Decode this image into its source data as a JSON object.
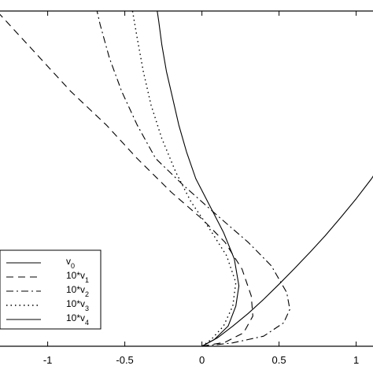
{
  "chart_data": {
    "type": "line",
    "xlim": [
      -1.35,
      1.15
    ],
    "ylim": [
      0,
      1
    ],
    "xticks": [
      -1,
      -0.5,
      0,
      0.5,
      1
    ],
    "xtick_labels": [
      "-1",
      "-0.5",
      "0",
      "0.5",
      "1"
    ],
    "grid": false,
    "legend_placement": "bottom-left",
    "series": [
      {
        "name": "v0",
        "label_main": "v",
        "label_sub": "0",
        "style": "solid",
        "points": [
          [
            0.0,
            0.0
          ],
          [
            0.1,
            0.025
          ],
          [
            0.2,
            0.06
          ],
          [
            0.3,
            0.098
          ],
          [
            0.4,
            0.14
          ],
          [
            0.5,
            0.185
          ],
          [
            0.6,
            0.232
          ],
          [
            0.7,
            0.28
          ],
          [
            0.8,
            0.33
          ],
          [
            0.9,
            0.384
          ],
          [
            1.0,
            0.44
          ],
          [
            1.1,
            0.5
          ],
          [
            1.17,
            0.55
          ]
        ]
      },
      {
        "name": "10*v1",
        "label_main": "10*v",
        "label_sub": "1",
        "style": "dashed",
        "points": [
          [
            0.0,
            0.0
          ],
          [
            0.15,
            0.012
          ],
          [
            0.27,
            0.04
          ],
          [
            0.33,
            0.09
          ],
          [
            0.32,
            0.15
          ],
          [
            0.26,
            0.23
          ],
          [
            0.15,
            0.31
          ],
          [
            0.0,
            0.38
          ],
          [
            -0.2,
            0.46
          ],
          [
            -0.42,
            0.56
          ],
          [
            -0.62,
            0.66
          ],
          [
            -0.85,
            0.76
          ],
          [
            -1.05,
            0.86
          ],
          [
            -1.25,
            0.96
          ],
          [
            -1.33,
            1.0
          ]
        ]
      },
      {
        "name": "10*v2",
        "label_main": "10*v",
        "label_sub": "2",
        "style": "dashdot",
        "points": [
          [
            0.0,
            0.0
          ],
          [
            0.2,
            0.01
          ],
          [
            0.4,
            0.03
          ],
          [
            0.53,
            0.07
          ],
          [
            0.57,
            0.11
          ],
          [
            0.55,
            0.16
          ],
          [
            0.45,
            0.24
          ],
          [
            0.3,
            0.31
          ],
          [
            0.1,
            0.39
          ],
          [
            -0.12,
            0.48
          ],
          [
            -0.3,
            0.56
          ],
          [
            -0.42,
            0.66
          ],
          [
            -0.52,
            0.76
          ],
          [
            -0.6,
            0.86
          ],
          [
            -0.66,
            0.96
          ],
          [
            -0.68,
            1.0
          ]
        ]
      },
      {
        "name": "10*v3",
        "label_main": "10*v",
        "label_sub": "3",
        "style": "dotted",
        "points": [
          [
            0.0,
            0.0
          ],
          [
            0.06,
            0.02
          ],
          [
            0.14,
            0.06
          ],
          [
            0.2,
            0.12
          ],
          [
            0.22,
            0.19
          ],
          [
            0.16,
            0.27
          ],
          [
            0.05,
            0.35
          ],
          [
            -0.07,
            0.43
          ],
          [
            -0.17,
            0.52
          ],
          [
            -0.26,
            0.62
          ],
          [
            -0.33,
            0.72
          ],
          [
            -0.38,
            0.82
          ],
          [
            -0.42,
            0.92
          ],
          [
            -0.45,
            1.0
          ]
        ]
      },
      {
        "name": "10*v4",
        "label_main": "10*v",
        "label_sub": "4",
        "style": "solid",
        "points": [
          [
            0.0,
            0.0
          ],
          [
            0.08,
            0.02
          ],
          [
            0.17,
            0.06
          ],
          [
            0.22,
            0.12
          ],
          [
            0.24,
            0.18
          ],
          [
            0.21,
            0.26
          ],
          [
            0.14,
            0.34
          ],
          [
            0.05,
            0.42
          ],
          [
            -0.04,
            0.5
          ],
          [
            -0.1,
            0.58
          ],
          [
            -0.15,
            0.66
          ],
          [
            -0.19,
            0.74
          ],
          [
            -0.23,
            0.82
          ],
          [
            -0.26,
            0.9
          ],
          [
            -0.28,
            0.97
          ],
          [
            -0.29,
            1.0
          ]
        ]
      }
    ]
  }
}
